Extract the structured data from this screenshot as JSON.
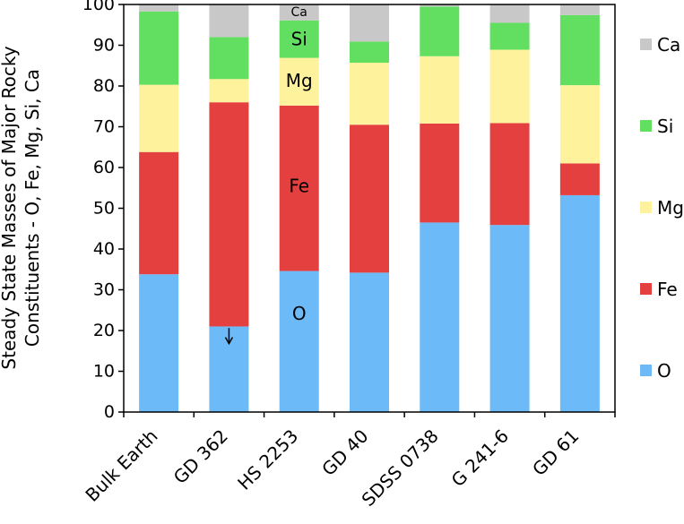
{
  "chart_data": {
    "type": "bar",
    "stacked": true,
    "title": "",
    "xlabel": "",
    "ylabel_lines": [
      "Steady State Masses of Major Rocky",
      "Constituents - O, Fe, Mg, Si, Ca"
    ],
    "ylim": [
      0,
      100
    ],
    "yticks": [
      "0",
      "10",
      "20",
      "30",
      "40",
      "50",
      "60",
      "70",
      "80",
      "90",
      "100"
    ],
    "grid": false,
    "legend_position": "right",
    "categories": [
      "Bulk Earth",
      "GD 362",
      "HS 2253",
      "GD 40",
      "SDSS 0738",
      "G 241-6",
      "GD 61"
    ],
    "series": [
      {
        "name": "O",
        "color": "#6cbaf8",
        "values": [
          33.8,
          21.0,
          34.6,
          34.2,
          46.5,
          45.9,
          53.2
        ]
      },
      {
        "name": "Fe",
        "color": "#e54040",
        "values": [
          30.0,
          55.0,
          40.6,
          36.3,
          24.3,
          25.0,
          7.8
        ]
      },
      {
        "name": "Mg",
        "color": "#fff29c",
        "values": [
          16.5,
          5.7,
          11.7,
          15.2,
          16.5,
          18.0,
          19.2
        ]
      },
      {
        "name": "Si",
        "color": "#62de60",
        "values": [
          18.0,
          10.3,
          9.2,
          5.2,
          12.2,
          6.6,
          17.2
        ]
      },
      {
        "name": "Ca",
        "color": "#c8c8c8",
        "values": [
          1.7,
          8.0,
          3.9,
          9.1,
          0.5,
          4.5,
          2.6
        ]
      }
    ],
    "legend_order": [
      "Ca",
      "Si",
      "Mg",
      "Fe",
      "O"
    ],
    "annotations": [
      {
        "text": "Ca",
        "category": "HS 2253",
        "y": 98.0,
        "small": true
      },
      {
        "text": "Si",
        "category": "HS 2253",
        "y": 91.5
      },
      {
        "text": "Mg",
        "category": "HS 2253",
        "y": 81.3
      },
      {
        "text": "Fe",
        "category": "HS 2253",
        "y": 55.5
      },
      {
        "text": "O",
        "category": "HS 2253",
        "y": 24.2
      }
    ],
    "arrow": {
      "category": "GD 362",
      "from_y": 20.6,
      "to_y": 16.8,
      "direction": "down"
    }
  }
}
